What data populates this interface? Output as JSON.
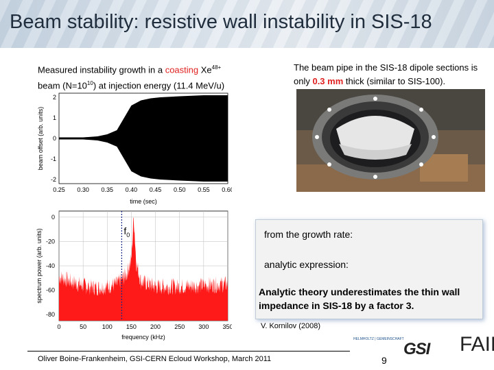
{
  "slide": {
    "title": "Beam stability: resistive wall instability in SIS-18",
    "caption_left": {
      "p1": "Measured instability growth in a ",
      "p1_red": "coasting",
      "p1_tail": " Xe",
      "p1_sup": "48+",
      "line2a": "beam (N=10",
      "line2_sup": "10",
      "line2b": ") at injection energy (11.4 MeV/u)"
    },
    "caption_right": {
      "a": "The beam pipe in the SIS-18 dipole sections is only ",
      "red": "0.3 mm",
      "b": " thick (similar to SIS-100)."
    },
    "box": {
      "growth": "from the growth rate:",
      "analytic": "analytic expression:",
      "underestimate": "Analytic theory underestimates the thin wall impedance in SIS-18 by a factor 3."
    },
    "reference": "V. Kornilov (2008)",
    "footer": "Oliver Boine-Frankenheim,  GSI-CERN Ecloud Workshop, March 2011",
    "page_number": "9",
    "logos": {
      "helmholtz": "HELMHOLTZ | GEMEINSCHAFT",
      "gsi": "GSI",
      "fair": "FAIR"
    },
    "colors": {
      "accent_red": "#e02020",
      "spectrum_red": "#ff1a1a",
      "box_bg": "#f2f2f2"
    }
  },
  "chart_data": [
    {
      "type": "line",
      "title": "",
      "xlabel": "time (sec)",
      "ylabel": "beam offset (arb. units)",
      "xticks": [
        "0.25",
        "0.30",
        "0.35",
        "0.40",
        "0.45",
        "0.50",
        "0.55",
        "0.60"
      ],
      "yticks": [
        "2",
        "1",
        "0",
        "-1",
        "-2"
      ],
      "xlim": [
        0.25,
        0.6
      ],
      "ylim": [
        -2.2,
        2.2
      ],
      "envelope": {
        "t": [
          0.25,
          0.3,
          0.33,
          0.35,
          0.37,
          0.38,
          0.39,
          0.4,
          0.42,
          0.44,
          0.46,
          0.5,
          0.55,
          0.6
        ],
        "amp": [
          0.05,
          0.05,
          0.1,
          0.2,
          0.4,
          0.8,
          1.2,
          1.6,
          1.85,
          1.95,
          2.0,
          2.05,
          2.1,
          2.1
        ]
      }
    },
    {
      "type": "line",
      "title": "",
      "xlabel": "frequency (kHz)",
      "ylabel": "spectrum power (arb. units)",
      "xticks": [
        "0",
        "50",
        "100",
        "150",
        "200",
        "250",
        "300",
        "350"
      ],
      "yticks": [
        "0",
        "-20",
        "-40",
        "-60",
        "-80"
      ],
      "xlim": [
        0,
        350
      ],
      "ylim": [
        -85,
        5
      ],
      "marker_label": "f",
      "marker_sub": "0",
      "marker_x": 130,
      "series": [
        {
          "name": "spectrum",
          "x": [
            0,
            20,
            40,
            60,
            80,
            100,
            120,
            140,
            150,
            155,
            160,
            170,
            200,
            250,
            300,
            350
          ],
          "y": [
            -52,
            -55,
            -58,
            -60,
            -61,
            -60,
            -58,
            -50,
            -38,
            -2,
            -40,
            -56,
            -60,
            -60,
            -59,
            -58
          ]
        }
      ]
    }
  ]
}
